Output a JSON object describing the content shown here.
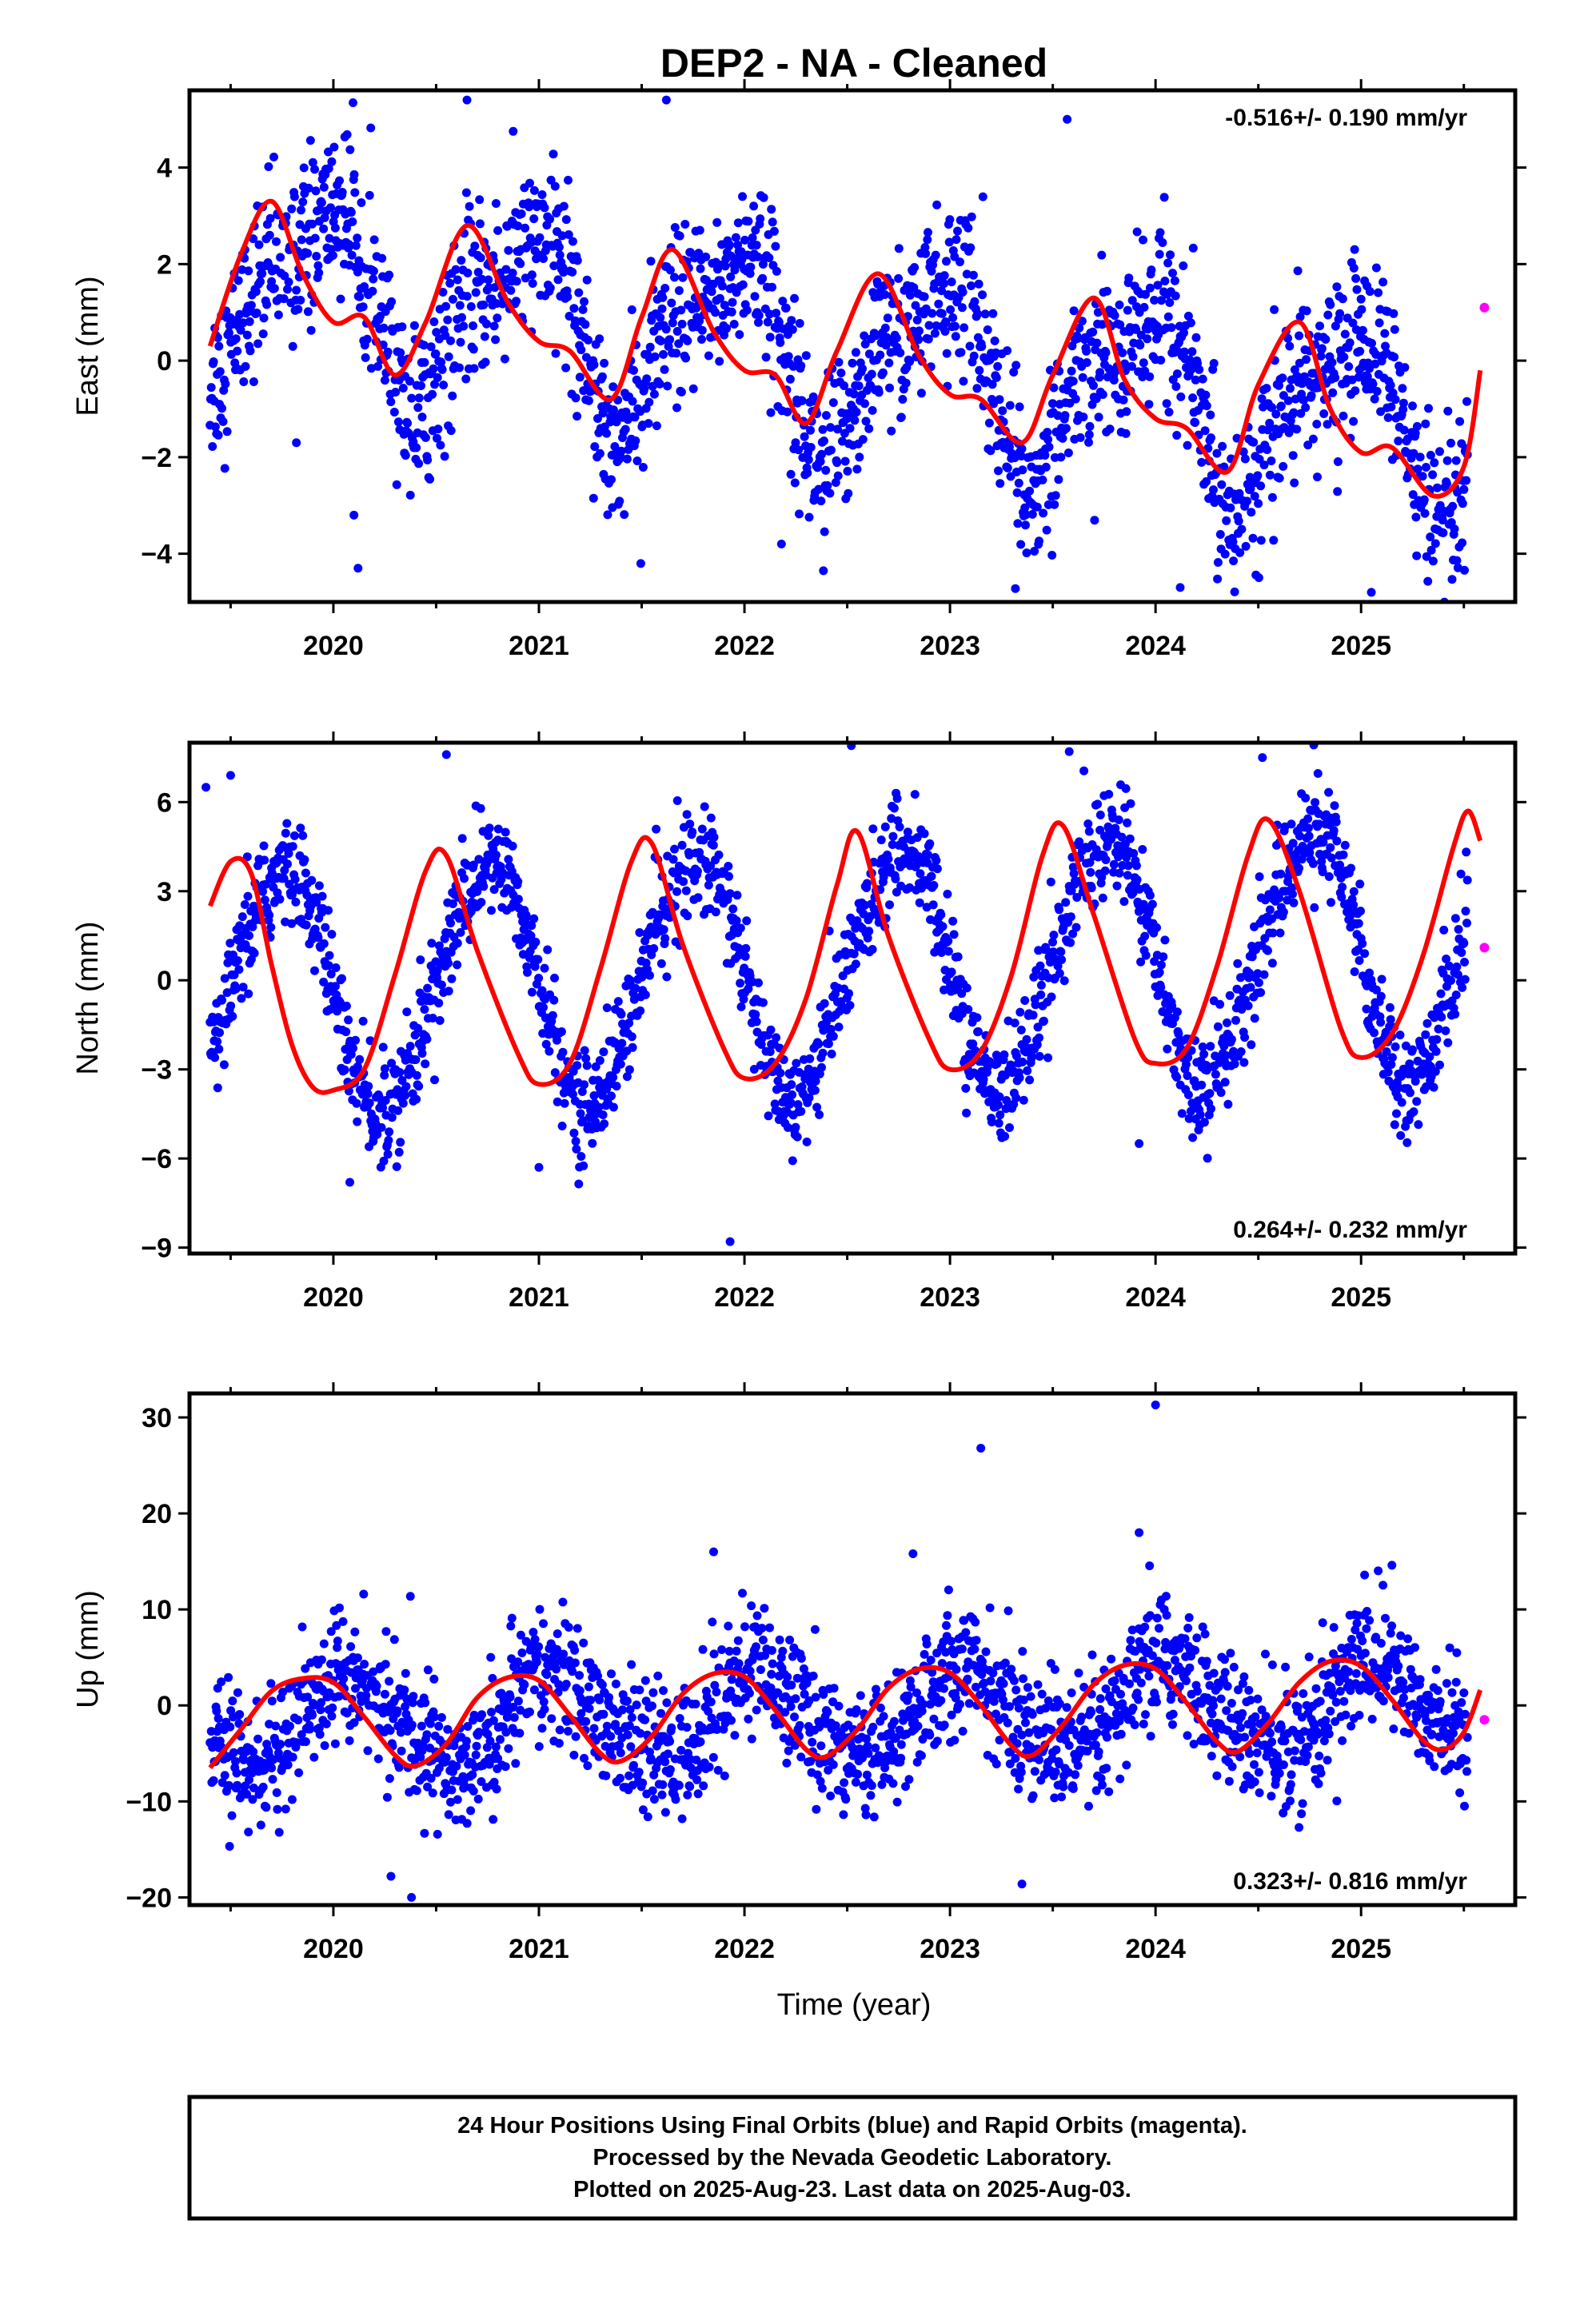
{
  "figure": {
    "title": "DEP2  - NA - Cleaned",
    "xlabel": "Time (year)",
    "footer_lines": [
      "24 Hour Positions Using Final Orbits (blue) and Rapid Orbits (magenta).",
      "Processed by the Nevada Geodetic Laboratory.",
      "Plotted on 2025-Aug-23. Last data on 2025-Aug-03."
    ],
    "colors": {
      "final_points": "#0000ff",
      "rapid_points": "#ff00ff",
      "fit_line": "#ff0000",
      "frame": "#000000"
    }
  },
  "chart_data": [
    {
      "type": "scatter",
      "component": "East",
      "ylabel": "East (mm)",
      "rate_text": "-0.516+/- 0.190 mm/yr",
      "xlim": [
        2019.3,
        2025.75
      ],
      "ylim": [
        -5.0,
        5.6
      ],
      "xticks": [
        2020,
        2021,
        2022,
        2023,
        2024,
        2025
      ],
      "yticks": [
        -4,
        -2,
        0,
        2,
        4
      ],
      "ytick_labels": [
        "−4",
        "−2",
        "0",
        "2",
        "4"
      ],
      "seasonal_model": {
        "mean": 0.1,
        "rate": -0.516,
        "amp_annual": 1.7,
        "phase_annual": 2019.43,
        "amp_semiannual": 0.6,
        "phase_semiannual": 2019.6,
        "noise_sd": 0.85
      },
      "fit_series": {
        "name": "fit",
        "x": [
          2019.4,
          2019.55,
          2019.7,
          2019.85,
          2020.0,
          2020.15,
          2020.3,
          2020.45,
          2020.65,
          2020.85,
          2021.0,
          2021.15,
          2021.35,
          2021.5,
          2021.65,
          2021.85,
          2022.0,
          2022.15,
          2022.3,
          2022.45,
          2022.65,
          2022.85,
          2023.0,
          2023.15,
          2023.35,
          2023.5,
          2023.7,
          2023.85,
          2024.0,
          2024.15,
          2024.35,
          2024.5,
          2024.7,
          2024.85,
          2025.0,
          2025.15,
          2025.35,
          2025.5,
          2025.58
        ],
        "y": [
          0.3,
          2.2,
          3.3,
          1.8,
          0.8,
          0.9,
          -0.3,
          0.8,
          2.8,
          1.2,
          0.4,
          0.2,
          -0.8,
          0.9,
          2.3,
          0.6,
          -0.2,
          -0.3,
          -1.3,
          0.2,
          1.8,
          0.1,
          -0.7,
          -0.8,
          -1.7,
          -0.3,
          1.3,
          -0.4,
          -1.2,
          -1.4,
          -2.3,
          -0.5,
          0.8,
          -1.0,
          -1.9,
          -1.8,
          -2.8,
          -2.2,
          -0.2
        ]
      },
      "final_points_extremes": [
        [
          2020.12,
          -4.3
        ],
        [
          2020.1,
          -3.2
        ],
        [
          2020.65,
          5.4
        ],
        [
          2021.62,
          5.4
        ],
        [
          2022.18,
          -3.8
        ],
        [
          2024.12,
          -4.7
        ],
        [
          2025.05,
          -4.8
        ],
        [
          2023.57,
          5.0
        ],
        [
          2019.82,
          -1.7
        ]
      ],
      "rapid_points": {
        "name": "rapid",
        "x": [
          2025.6
        ],
        "y": [
          1.1
        ]
      }
    },
    {
      "type": "scatter",
      "component": "North",
      "ylabel": "North (mm)",
      "rate_text": "0.264+/- 0.232 mm/yr",
      "xlim": [
        2019.3,
        2025.75
      ],
      "ylim": [
        -9.2,
        8.0
      ],
      "xticks": [
        2020,
        2021,
        2022,
        2023,
        2024,
        2025
      ],
      "yticks": [
        -9,
        -6,
        -3,
        0,
        3,
        6
      ],
      "ytick_labels": [
        "−9",
        "−6",
        "−3",
        "0",
        "3",
        "6"
      ],
      "seasonal_model": {
        "mean": 0.3,
        "rate": 0.264,
        "amp_annual": 4.1,
        "phase_annual": 2019.25,
        "amp_semiannual": 0.3,
        "phase_semiannual": 2019.4,
        "noise_sd": 0.9
      },
      "fit_series": {
        "name": "fit",
        "x": [
          2019.4,
          2019.5,
          2019.6,
          2019.7,
          2019.8,
          2019.9,
          2020.0,
          2020.15,
          2020.3,
          2020.45,
          2020.55,
          2020.7,
          2020.9,
          2021.0,
          2021.15,
          2021.3,
          2021.45,
          2021.55,
          2021.7,
          2021.9,
          2022.0,
          2022.15,
          2022.3,
          2022.45,
          2022.55,
          2022.7,
          2022.9,
          2023.0,
          2023.15,
          2023.3,
          2023.45,
          2023.55,
          2023.7,
          2023.9,
          2024.0,
          2024.15,
          2024.3,
          2024.45,
          2024.55,
          2024.7,
          2024.9,
          2025.0,
          2025.15,
          2025.3,
          2025.45,
          2025.52,
          2025.58
        ],
        "y": [
          2.5,
          4.0,
          3.6,
          0.5,
          -2.2,
          -3.6,
          -3.7,
          -3.0,
          0.2,
          3.7,
          4.2,
          1.0,
          -2.5,
          -3.5,
          -2.8,
          0.4,
          4.0,
          4.6,
          1.2,
          -2.3,
          -3.3,
          -2.8,
          -0.6,
          3.2,
          5.0,
          1.5,
          -2.0,
          -3.0,
          -2.4,
          0.2,
          4.2,
          5.2,
          2.2,
          -2.0,
          -2.8,
          -2.3,
          0.5,
          4.2,
          5.4,
          3.0,
          -1.6,
          -2.6,
          -1.8,
          0.8,
          4.5,
          5.7,
          4.7
        ]
      },
      "final_points_extremes": [
        [
          2019.38,
          6.5
        ],
        [
          2019.5,
          6.9
        ],
        [
          2020.08,
          -6.8
        ],
        [
          2020.55,
          7.6
        ],
        [
          2021.0,
          -6.3
        ],
        [
          2021.93,
          -8.8
        ],
        [
          2022.52,
          7.9
        ],
        [
          2023.58,
          7.7
        ],
        [
          2024.52,
          7.5
        ],
        [
          2023.92,
          -5.5
        ]
      ],
      "rapid_points": {
        "name": "rapid",
        "x": [
          2025.6
        ],
        "y": [
          1.1
        ]
      }
    },
    {
      "type": "scatter",
      "component": "Up",
      "ylabel": "Up (mm)",
      "rate_text": "0.323+/- 0.816 mm/yr",
      "xlim": [
        2019.3,
        2025.75
      ],
      "ylim": [
        -20.8,
        32.5
      ],
      "xticks": [
        2020,
        2021,
        2022,
        2023,
        2024,
        2025
      ],
      "yticks": [
        -20,
        -10,
        0,
        10,
        20,
        30
      ],
      "ytick_labels": [
        "−20",
        "−10",
        "0",
        "10",
        "20",
        "30"
      ],
      "seasonal_model": {
        "mean": -1.0,
        "rate": 0.323,
        "amp_annual": 4.5,
        "phase_annual": 2019.57,
        "amp_semiannual": 0.8,
        "phase_semiannual": 2019.5,
        "noise_sd": 3.4
      },
      "fit_series": {
        "name": "fit",
        "x": [
          2019.4,
          2019.55,
          2019.7,
          2019.85,
          2020.0,
          2020.15,
          2020.3,
          2020.4,
          2020.55,
          2020.7,
          2020.85,
          2021.0,
          2021.15,
          2021.3,
          2021.4,
          2021.55,
          2021.7,
          2021.85,
          2022.0,
          2022.15,
          2022.3,
          2022.4,
          2022.55,
          2022.7,
          2022.85,
          2023.0,
          2023.15,
          2023.3,
          2023.4,
          2023.55,
          2023.7,
          2023.85,
          2024.0,
          2024.15,
          2024.3,
          2024.4,
          2024.55,
          2024.7,
          2024.85,
          2025.0,
          2025.15,
          2025.3,
          2025.4,
          2025.5,
          2025.58
        ],
        "y": [
          -6.5,
          -2.5,
          1.5,
          2.8,
          2.4,
          -1.2,
          -5.2,
          -6.3,
          -4.0,
          0.8,
          2.9,
          2.6,
          -1.0,
          -5.0,
          -5.8,
          -3.2,
          1.2,
          3.3,
          3.0,
          -0.5,
          -4.6,
          -5.3,
          -2.5,
          1.8,
          3.8,
          3.4,
          0.0,
          -4.2,
          -5.2,
          -2.0,
          2.2,
          4.2,
          3.8,
          0.3,
          -3.8,
          -4.8,
          -1.8,
          2.4,
          4.6,
          4.1,
          0.6,
          -3.6,
          -4.6,
          -2.8,
          1.6
        ]
      },
      "final_points_extremes": [
        [
          2023.15,
          26.8
        ],
        [
          2024.0,
          31.3
        ],
        [
          2020.28,
          -17.8
        ],
        [
          2020.38,
          -20.0
        ],
        [
          2023.35,
          -18.6
        ],
        [
          2023.92,
          18.0
        ],
        [
          2025.15,
          14.6
        ],
        [
          2021.85,
          16.0
        ],
        [
          2022.82,
          15.8
        ]
      ],
      "rapid_points": {
        "name": "rapid",
        "x": [
          2025.6
        ],
        "y": [
          -1.5
        ]
      }
    }
  ]
}
